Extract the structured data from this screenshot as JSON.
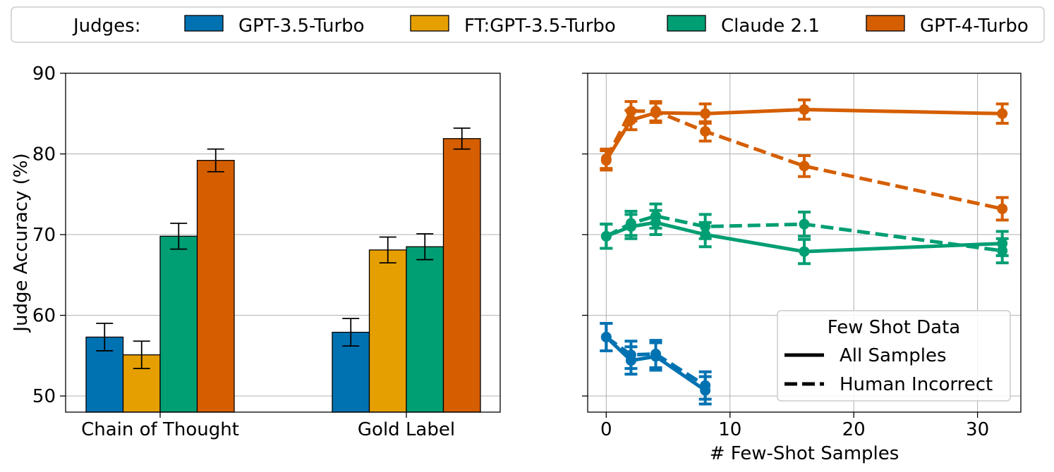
{
  "legend": {
    "title": "Judges:",
    "entries": [
      {
        "name": "GPT-3.5-Turbo",
        "color": "#0072b2"
      },
      {
        "name": "FT:GPT-3.5-Turbo",
        "color": "#e69f00"
      },
      {
        "name": "Claude 2.1",
        "color": "#009e73"
      },
      {
        "name": "GPT-4-Turbo",
        "color": "#d55e00"
      }
    ]
  },
  "chart_data": [
    {
      "type": "bar",
      "ylabel": "Judge Accuracy (%)",
      "xlabel": "",
      "ylim": [
        48,
        90
      ],
      "yticks": [
        50,
        60,
        70,
        80,
        90
      ],
      "categories": [
        "Chain of Thought",
        "Gold Label"
      ],
      "grid": "y",
      "series": [
        {
          "name": "GPT-3.5-Turbo",
          "color": "#0072b2",
          "values": [
            57.3,
            57.9
          ],
          "errors": [
            1.7,
            1.7
          ]
        },
        {
          "name": "FT:GPT-3.5-Turbo",
          "color": "#e69f00",
          "values": [
            55.1,
            68.1
          ],
          "errors": [
            1.7,
            1.6
          ]
        },
        {
          "name": "Claude 2.1",
          "color": "#009e73",
          "values": [
            69.8,
            68.5
          ],
          "errors": [
            1.6,
            1.6
          ]
        },
        {
          "name": "GPT-4-Turbo",
          "color": "#d55e00",
          "values": [
            79.2,
            81.9
          ],
          "errors": [
            1.4,
            1.3
          ]
        }
      ]
    },
    {
      "type": "line",
      "xlabel": "# Few-Shot Samples",
      "ylabel": "",
      "xlim": [
        -1.5,
        33.5
      ],
      "ylim": [
        48,
        90
      ],
      "xticks": [
        0,
        10,
        20,
        30
      ],
      "yticks": [
        50,
        60,
        70,
        80,
        90
      ],
      "grid": "both",
      "legend": {
        "title": "Few Shot Data",
        "position": "lower-right",
        "entries": [
          {
            "label": "All Samples",
            "style": "solid"
          },
          {
            "label": "Human Incorrect",
            "style": "dashed"
          }
        ]
      },
      "series": [
        {
          "name": "GPT-4-Turbo",
          "style": "solid",
          "color": "#d55e00",
          "x": [
            0,
            2,
            4,
            8,
            16,
            32
          ],
          "y": [
            79.2,
            84.2,
            85.1,
            85.0,
            85.5,
            85.0
          ],
          "errors": [
            1.2,
            1.2,
            1.2,
            1.2,
            1.2,
            1.2
          ]
        },
        {
          "name": "GPT-4-Turbo",
          "style": "dashed",
          "color": "#d55e00",
          "x": [
            0,
            2,
            4,
            8,
            16,
            32
          ],
          "y": [
            79.4,
            85.3,
            85.3,
            82.8,
            78.5,
            73.2
          ],
          "errors": [
            1.2,
            1.2,
            1.2,
            1.2,
            1.3,
            1.4
          ]
        },
        {
          "name": "Claude 2.1",
          "style": "solid",
          "color": "#009e73",
          "x": [
            0,
            2,
            4,
            8,
            16,
            32
          ],
          "y": [
            69.8,
            71.0,
            71.5,
            70.0,
            67.9,
            68.9
          ],
          "errors": [
            1.5,
            1.5,
            1.5,
            1.5,
            1.5,
            1.5
          ]
        },
        {
          "name": "Claude 2.1",
          "style": "dashed",
          "color": "#009e73",
          "x": [
            0,
            2,
            4,
            8,
            16,
            32
          ],
          "y": [
            69.8,
            71.4,
            72.3,
            71.0,
            71.3,
            68.0
          ],
          "errors": [
            1.5,
            1.5,
            1.5,
            1.5,
            1.5,
            1.5
          ]
        },
        {
          "name": "GPT-3.5-Turbo",
          "style": "solid",
          "color": "#0072b2",
          "x": [
            0,
            2,
            4,
            8
          ],
          "y": [
            57.3,
            54.4,
            54.9,
            50.7
          ],
          "errors": [
            1.7,
            1.7,
            1.7,
            1.7
          ]
        },
        {
          "name": "GPT-3.5-Turbo",
          "style": "dashed",
          "color": "#0072b2",
          "x": [
            0,
            2,
            4,
            8
          ],
          "y": [
            57.3,
            55.1,
            55.2,
            51.3
          ],
          "errors": [
            1.7,
            1.7,
            1.7,
            1.7
          ]
        }
      ]
    }
  ]
}
